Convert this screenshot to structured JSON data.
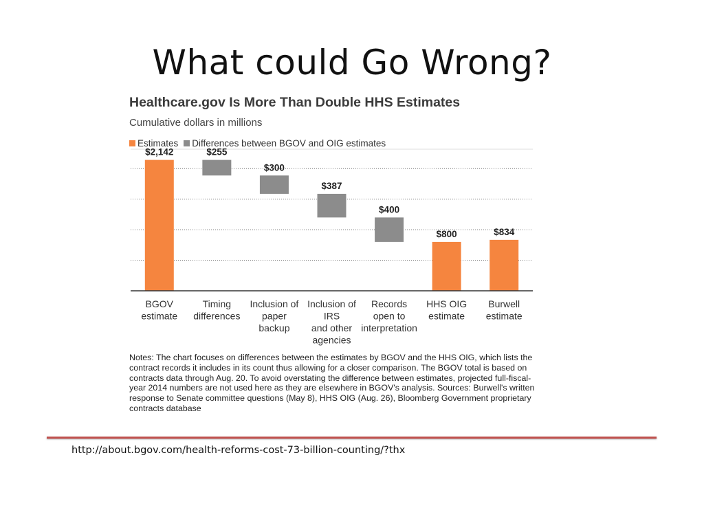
{
  "slide": {
    "title": "What could Go Wrong?",
    "source_url": "http://about.bgov.com/health-reforms-cost-73-billion-counting/?thx"
  },
  "chart_data": {
    "type": "bar",
    "subtype": "waterfall",
    "title": "Healthcare.gov Is More Than Double HHS Estimates",
    "subtitle": "Cumulative dollars in millions",
    "legend": [
      {
        "name": "Estimates",
        "color": "#f5853f"
      },
      {
        "name": "Differences between BGOV and OIG estimates",
        "color": "#8c8c8c"
      }
    ],
    "legend_position": "top-left",
    "grid": true,
    "ylim": [
      0,
      2250
    ],
    "categories": [
      [
        "BGOV",
        "estimate"
      ],
      [
        "Timing",
        "differences"
      ],
      [
        "Inclusion of",
        "paper",
        "backup"
      ],
      [
        "Inclusion of",
        "IRS",
        "and other",
        "agencies"
      ],
      [
        "Records",
        "open to",
        "interpretation"
      ],
      [
        "HHS OIG",
        "estimate"
      ],
      [
        "Burwell",
        "estimate"
      ]
    ],
    "bars": [
      {
        "kind": "estimate",
        "start": 0,
        "end": 2142,
        "label": "$2,142"
      },
      {
        "kind": "difference",
        "start": 1887,
        "end": 2142,
        "label": "$255"
      },
      {
        "kind": "difference",
        "start": 1587,
        "end": 1887,
        "label": "$300"
      },
      {
        "kind": "difference",
        "start": 1200,
        "end": 1587,
        "label": "$387"
      },
      {
        "kind": "difference",
        "start": 800,
        "end": 1200,
        "label": "$400"
      },
      {
        "kind": "estimate",
        "start": 0,
        "end": 800,
        "label": "$800"
      },
      {
        "kind": "estimate",
        "start": 0,
        "end": 834,
        "label": "$834"
      }
    ],
    "notes": "Notes: The chart focuses on differences between the estimates by BGOV and the HHS OIG, which lists the contract records it includes in its count thus allowing for a closer comparison. The BGOV total is based on contracts data through Aug. 20. To avoid overstating the difference between estimates, projected full-fiscal-year 2014 numbers are not used here as they are elsewhere in BGOV's analysis. Sources: Burwell's written response to Senate committee questions (May 8), HHS OIG (Aug. 26), Bloomberg Government proprietary contracts database"
  }
}
